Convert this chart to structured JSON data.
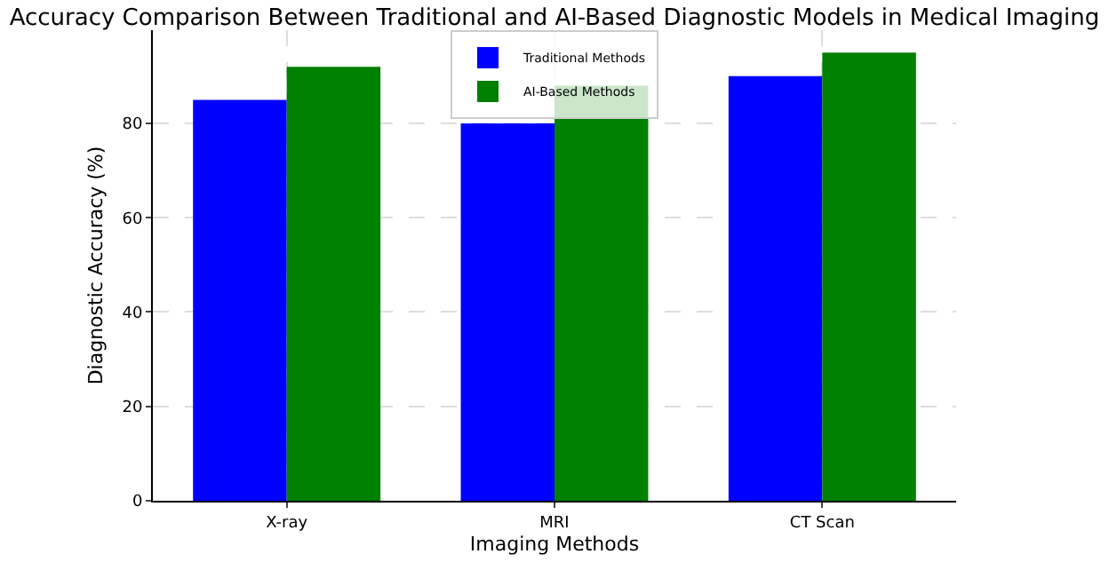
{
  "chart_data": {
    "type": "bar",
    "title": "Accuracy Comparison Between Traditional and AI-Based Diagnostic Models in Medical Imaging",
    "xlabel": "Imaging Methods",
    "ylabel": "Diagnostic Accuracy (%)",
    "categories": [
      "X-ray",
      "MRI",
      "CT Scan"
    ],
    "series": [
      {
        "name": "Traditional Methods",
        "color": "#0000ff",
        "values": [
          85,
          80,
          90
        ]
      },
      {
        "name": "AI-Based Methods",
        "color": "#008000",
        "values": [
          92,
          88,
          95
        ]
      }
    ],
    "ylim": [
      0,
      99.75
    ],
    "yticks": [
      0,
      20,
      40,
      60,
      80
    ],
    "grid": true,
    "legend": "top"
  }
}
